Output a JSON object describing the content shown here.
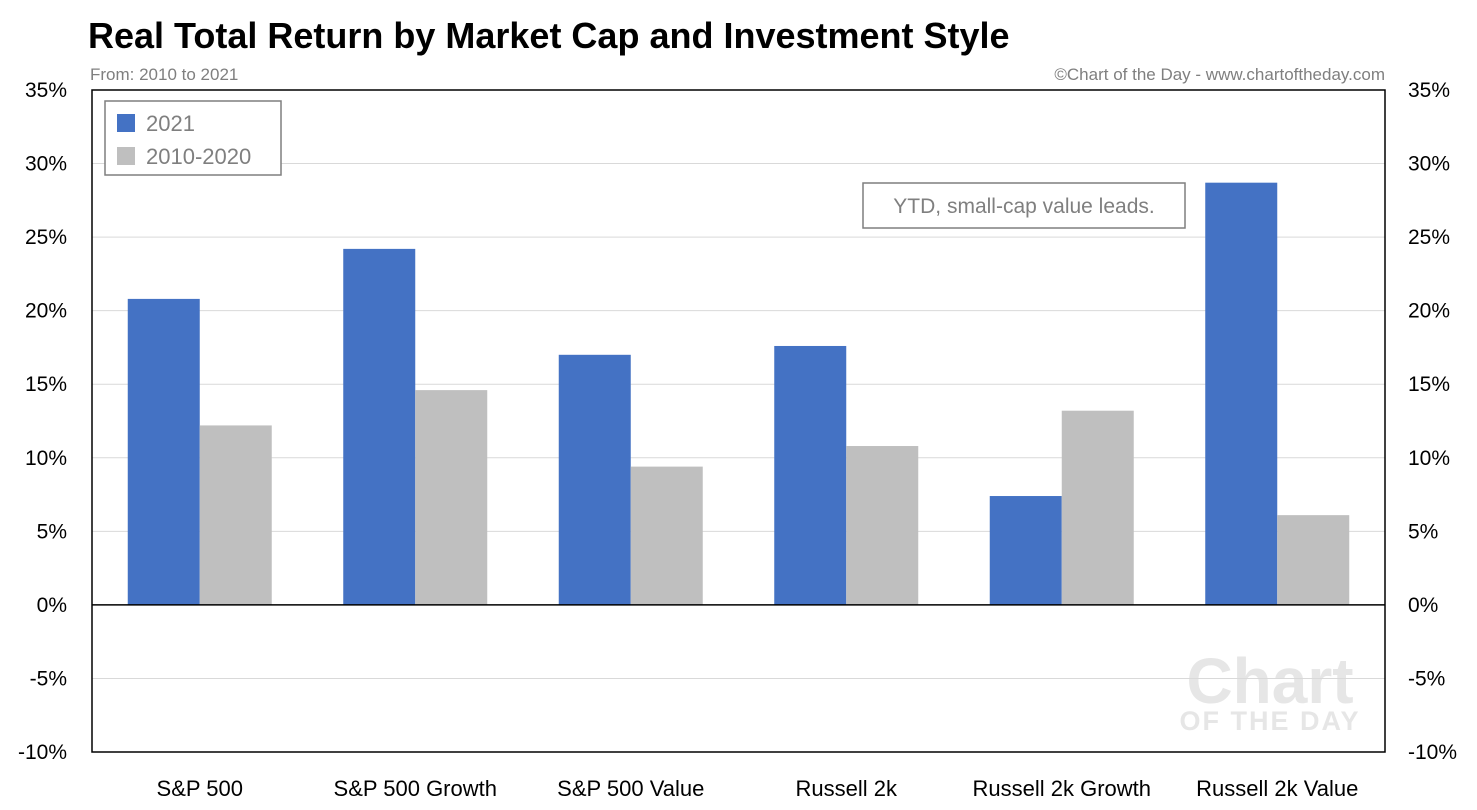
{
  "header": {
    "title": "Real Total Return by Market Cap and Investment Style",
    "subtitle_left": "From: 2010 to 2021",
    "subtitle_right": "©Chart of the Day - www.chartoftheday.com"
  },
  "annotation": "YTD, small-cap value leads.",
  "watermark": {
    "line1": "Chart",
    "line2": "OF THE DAY"
  },
  "chart_data": {
    "type": "bar",
    "title": "Real Total Return by Market Cap and Investment Style",
    "subtitle": "From: 2010 to 2021",
    "categories": [
      "S&P 500",
      "S&P 500 Growth",
      "S&P 500 Value",
      "Russell 2k",
      "Russell 2k Growth",
      "Russell 2k Value"
    ],
    "series": [
      {
        "name": "2021",
        "color": "#4472c4",
        "values": [
          20.8,
          24.2,
          17.0,
          17.6,
          7.4,
          28.7
        ]
      },
      {
        "name": "2010-2020",
        "color": "#bfbfbf",
        "values": [
          12.2,
          14.6,
          9.4,
          10.8,
          13.2,
          6.1
        ]
      }
    ],
    "ylim": [
      -10,
      35
    ],
    "yticks": [
      35,
      30,
      25,
      20,
      15,
      10,
      5,
      0,
      -5,
      -10
    ],
    "ytick_labels": [
      "35%",
      "30%",
      "25%",
      "20%",
      "15%",
      "10%",
      "5%",
      "0%",
      "-5%",
      "-10%"
    ],
    "y_axis_sides": "both",
    "grid": true,
    "legend_position": "top-left",
    "xlabel": "",
    "ylabel": ""
  }
}
